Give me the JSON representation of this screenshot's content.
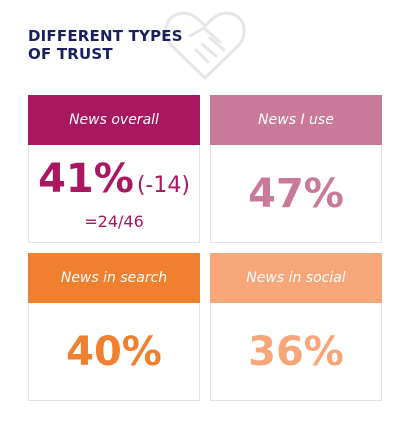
{
  "title": [
    "DIFFERENT TYPES",
    "OF TRUST"
  ],
  "cards": [
    {
      "label": "News overall",
      "value": "41%",
      "change": "(-14)",
      "rank": "=24/46"
    },
    {
      "label": "News I use",
      "value": "47%"
    },
    {
      "label": "News in search",
      "value": "40%"
    },
    {
      "label": "News in social",
      "value": "36%"
    }
  ]
}
